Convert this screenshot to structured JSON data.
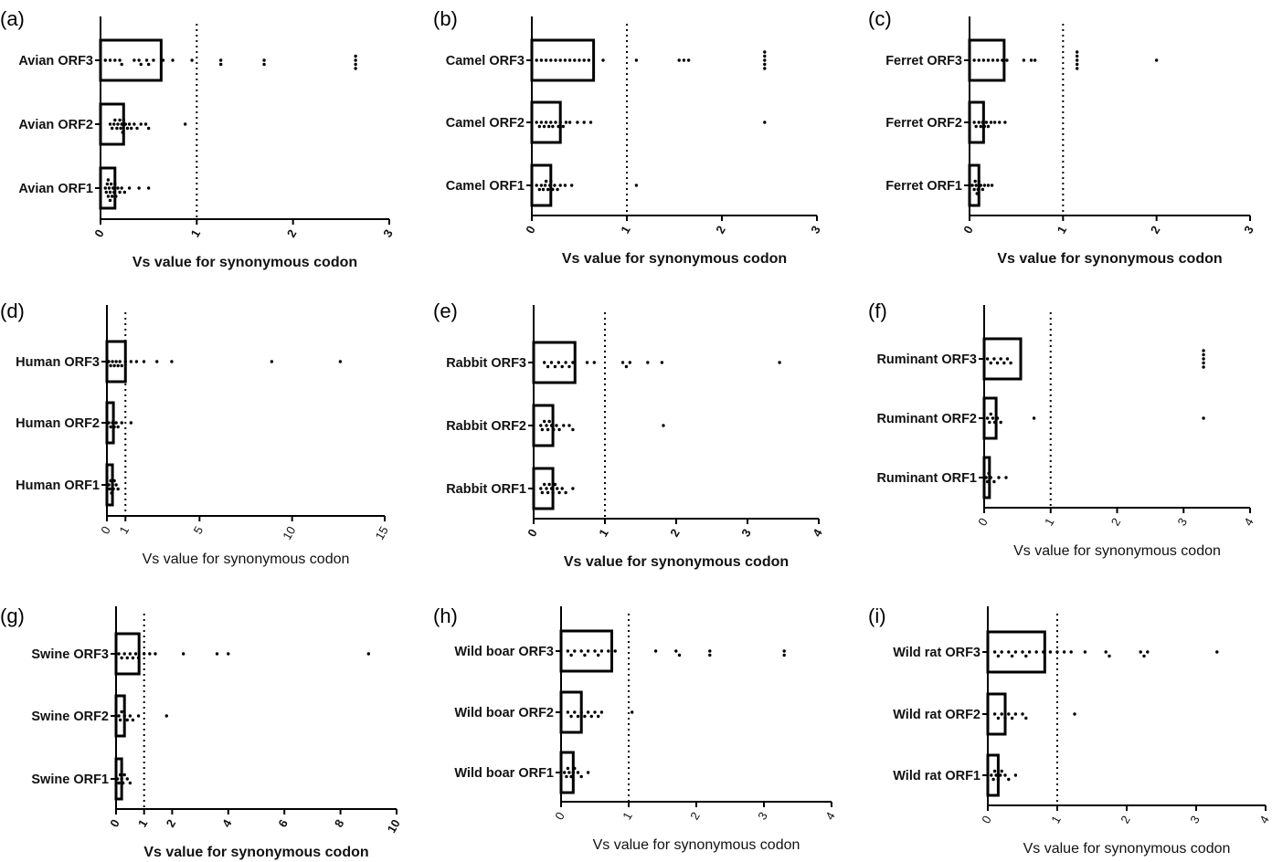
{
  "figure": {
    "colors": {
      "ink": "#000000",
      "background": "#ffffff"
    }
  },
  "chart_data": [
    {
      "panel": "(a)",
      "type": "scatter",
      "style": "dot-plot with bar at median",
      "xlabel": "Vs value for synonymous codon",
      "xlim": [
        0,
        3
      ],
      "xticks": [
        "0",
        "1",
        "2",
        "3"
      ],
      "tick_step": 1,
      "reference_line": 1,
      "categories": [
        "Avian ORF1",
        "Avian ORF2",
        "Avian ORF3"
      ],
      "bars": [
        0.15,
        0.24,
        0.63
      ],
      "series": [
        {
          "name": "Avian ORF1",
          "values": [
            0.05,
            0.06,
            0.07,
            0.08,
            0.08,
            0.09,
            0.1,
            0.1,
            0.11,
            0.12,
            0.13,
            0.14,
            0.15,
            0.16,
            0.18,
            0.2,
            0.22,
            0.25,
            0.3,
            0.4,
            0.5
          ]
        },
        {
          "name": "Avian ORF2",
          "values": [
            0.1,
            0.12,
            0.14,
            0.15,
            0.17,
            0.18,
            0.2,
            0.21,
            0.22,
            0.23,
            0.24,
            0.26,
            0.28,
            0.3,
            0.32,
            0.35,
            0.38,
            0.42,
            0.47,
            0.5,
            0.88
          ]
        },
        {
          "name": "Avian ORF3",
          "values": [
            0.05,
            0.1,
            0.15,
            0.2,
            0.22,
            0.35,
            0.4,
            0.42,
            0.48,
            0.5,
            0.55,
            0.65,
            0.75,
            0.95,
            1.25,
            1.25,
            1.7,
            1.7,
            2.65,
            2.65,
            2.65,
            2.65
          ]
        }
      ]
    },
    {
      "panel": "(b)",
      "type": "scatter",
      "style": "dot-plot with bar at median",
      "xlabel": "Vs value for synonymous codon",
      "xlim": [
        0,
        3
      ],
      "xticks": [
        "0",
        "1",
        "2",
        "3"
      ],
      "tick_step": 1,
      "reference_line": 1,
      "categories": [
        "Camel ORF1",
        "Camel ORF2",
        "Camel ORF3"
      ],
      "bars": [
        0.2,
        0.3,
        0.65
      ],
      "series": [
        {
          "name": "Camel ORF1",
          "values": [
            0.05,
            0.08,
            0.1,
            0.12,
            0.14,
            0.15,
            0.17,
            0.19,
            0.2,
            0.22,
            0.24,
            0.27,
            0.3,
            0.35,
            0.42,
            1.1
          ]
        },
        {
          "name": "Camel ORF2",
          "values": [
            0.05,
            0.08,
            0.1,
            0.13,
            0.15,
            0.18,
            0.2,
            0.22,
            0.25,
            0.28,
            0.3,
            0.33,
            0.36,
            0.4,
            0.48,
            0.55,
            0.62,
            2.45
          ]
        },
        {
          "name": "Camel ORF3",
          "values": [
            0.05,
            0.1,
            0.15,
            0.2,
            0.25,
            0.3,
            0.35,
            0.4,
            0.45,
            0.5,
            0.55,
            0.6,
            0.75,
            1.1,
            1.55,
            1.6,
            1.65,
            2.45,
            2.45,
            2.45,
            2.45,
            2.45
          ]
        }
      ]
    },
    {
      "panel": "(c)",
      "type": "scatter",
      "style": "dot-plot with bar at median",
      "xlabel": "Vs value for synonymous codon",
      "xlim": [
        0,
        3
      ],
      "xticks": [
        "0",
        "1",
        "2",
        "3"
      ],
      "tick_step": 1,
      "reference_line": 1,
      "categories": [
        "Ferret ORF1",
        "Ferret ORF2",
        "Ferret ORF3"
      ],
      "bars": [
        0.1,
        0.15,
        0.37
      ],
      "series": [
        {
          "name": "Ferret ORF1",
          "values": [
            0.03,
            0.05,
            0.06,
            0.07,
            0.08,
            0.09,
            0.1,
            0.12,
            0.14,
            0.16,
            0.2,
            0.24
          ]
        },
        {
          "name": "Ferret ORF2",
          "values": [
            0.05,
            0.07,
            0.1,
            0.12,
            0.14,
            0.16,
            0.18,
            0.2,
            0.23,
            0.27,
            0.32,
            0.38
          ]
        },
        {
          "name": "Ferret ORF3",
          "values": [
            0.05,
            0.1,
            0.15,
            0.2,
            0.25,
            0.3,
            0.35,
            0.4,
            0.58,
            0.66,
            0.7,
            1.15,
            1.15,
            1.15,
            1.15,
            1.15,
            2.0
          ]
        }
      ]
    },
    {
      "panel": "(d)",
      "type": "scatter",
      "style": "dot-plot with bar at median",
      "xlabel": "Vs value for synonymous codon",
      "xlabel_weight": "normal",
      "xlim": [
        0,
        15
      ],
      "xticks": [
        "0",
        "1",
        "5",
        "10",
        "15"
      ],
      "tick_values": [
        0,
        1,
        5,
        10,
        15
      ],
      "reference_line": 1,
      "categories": [
        "Human ORF1",
        "Human ORF2",
        "Human ORF3"
      ],
      "bars": [
        0.3,
        0.35,
        1.0
      ],
      "series": [
        {
          "name": "Human ORF1",
          "values": [
            0.1,
            0.15,
            0.2,
            0.25,
            0.3,
            0.35,
            0.4,
            0.5,
            0.6
          ]
        },
        {
          "name": "Human ORF2",
          "values": [
            0.1,
            0.2,
            0.3,
            0.4,
            0.5,
            0.6,
            0.8,
            1.3
          ]
        },
        {
          "name": "Human ORF3",
          "values": [
            0.1,
            0.2,
            0.3,
            0.4,
            0.5,
            0.6,
            0.7,
            0.8,
            1.0,
            1.3,
            1.6,
            2.0,
            2.7,
            3.5,
            8.9,
            12.6
          ]
        }
      ]
    },
    {
      "panel": "(e)",
      "type": "scatter",
      "style": "dot-plot with bar at median",
      "xlabel": "Vs value for synonymous codon",
      "xlim": [
        0,
        4
      ],
      "xticks": [
        "0",
        "1",
        "2",
        "3",
        "4"
      ],
      "tick_step": 1,
      "reference_line": 1,
      "categories": [
        "Rabbit ORF1",
        "Rabbit ORF2",
        "Rabbit ORF3"
      ],
      "bars": [
        0.27,
        0.27,
        0.58
      ],
      "series": [
        {
          "name": "Rabbit ORF1",
          "values": [
            0.1,
            0.12,
            0.15,
            0.18,
            0.2,
            0.22,
            0.25,
            0.27,
            0.3,
            0.33,
            0.36,
            0.4,
            0.45,
            0.55
          ]
        },
        {
          "name": "Rabbit ORF2",
          "values": [
            0.1,
            0.12,
            0.15,
            0.18,
            0.2,
            0.22,
            0.25,
            0.28,
            0.32,
            0.36,
            0.42,
            0.5,
            0.55,
            1.82
          ]
        },
        {
          "name": "Rabbit ORF3",
          "values": [
            0.15,
            0.2,
            0.25,
            0.3,
            0.35,
            0.4,
            0.45,
            0.5,
            0.55,
            0.75,
            0.85,
            1.25,
            1.3,
            1.35,
            1.6,
            1.8,
            3.45
          ]
        }
      ]
    },
    {
      "panel": "(f)",
      "type": "scatter",
      "style": "dot-plot with bar at median",
      "xlabel": "Vs value for synonymous codon",
      "xlabel_weight": "normal",
      "xlim": [
        0,
        4
      ],
      "xticks": [
        "0",
        "1",
        "2",
        "3",
        "4"
      ],
      "tick_step": 1,
      "reference_line": 1,
      "categories": [
        "Ruminant ORF1",
        "Ruminant ORF2",
        "Ruminant ORF3"
      ],
      "bars": [
        0.08,
        0.18,
        0.55
      ],
      "series": [
        {
          "name": "Ruminant ORF1",
          "values": [
            0.03,
            0.05,
            0.07,
            0.1,
            0.15,
            0.22,
            0.33
          ]
        },
        {
          "name": "Ruminant ORF2",
          "values": [
            0.05,
            0.08,
            0.1,
            0.13,
            0.16,
            0.2,
            0.25,
            0.75,
            3.3
          ]
        },
        {
          "name": "Ruminant ORF3",
          "values": [
            0.05,
            0.1,
            0.15,
            0.2,
            0.25,
            0.3,
            0.35,
            0.4,
            3.3,
            3.3,
            3.3,
            3.3,
            3.3
          ]
        }
      ]
    },
    {
      "panel": "(g)",
      "type": "scatter",
      "style": "dot-plot with bar at median",
      "xlabel": "Vs value for synonymous codon",
      "xlim": [
        0,
        10
      ],
      "xticks": [
        "0",
        "1",
        "2",
        "4",
        "6",
        "8",
        "10"
      ],
      "tick_values": [
        0,
        1,
        2,
        4,
        6,
        8,
        10
      ],
      "reference_line": 1,
      "categories": [
        "Swine ORF1",
        "Swine ORF2",
        "Swine ORF3"
      ],
      "bars": [
        0.2,
        0.3,
        0.82
      ],
      "series": [
        {
          "name": "Swine ORF1",
          "values": [
            0.05,
            0.1,
            0.15,
            0.2,
            0.25,
            0.3,
            0.4,
            0.5
          ]
        },
        {
          "name": "Swine ORF2",
          "values": [
            0.1,
            0.15,
            0.2,
            0.3,
            0.4,
            0.5,
            0.6,
            0.8,
            1.8
          ]
        },
        {
          "name": "Swine ORF3",
          "values": [
            0.1,
            0.2,
            0.3,
            0.4,
            0.5,
            0.6,
            0.7,
            0.8,
            1.0,
            1.2,
            1.4,
            2.4,
            3.6,
            4.0,
            9.0
          ]
        }
      ]
    },
    {
      "panel": "(h)",
      "type": "scatter",
      "style": "dot-plot with bar at median",
      "xlabel": "Vs value for synonymous codon",
      "xlabel_weight": "normal",
      "xlim": [
        0,
        4
      ],
      "xticks": [
        "0",
        "1",
        "2",
        "3",
        "4"
      ],
      "tick_step": 1,
      "reference_line": 1,
      "categories": [
        "Wild boar ORF1",
        "Wild boar ORF2",
        "Wild boar ORF3"
      ],
      "bars": [
        0.18,
        0.3,
        0.75
      ],
      "series": [
        {
          "name": "Wild boar ORF1",
          "values": [
            0.05,
            0.08,
            0.1,
            0.12,
            0.15,
            0.18,
            0.2,
            0.25,
            0.3,
            0.4
          ]
        },
        {
          "name": "Wild boar ORF2",
          "values": [
            0.1,
            0.15,
            0.2,
            0.25,
            0.3,
            0.35,
            0.4,
            0.45,
            0.5,
            0.55,
            0.6,
            1.05
          ]
        },
        {
          "name": "Wild boar ORF3",
          "values": [
            0.1,
            0.15,
            0.2,
            0.3,
            0.35,
            0.4,
            0.5,
            0.55,
            0.6,
            0.7,
            0.8,
            1.4,
            1.7,
            1.75,
            2.2,
            2.2,
            3.3,
            3.3
          ]
        }
      ]
    },
    {
      "panel": "(i)",
      "type": "scatter",
      "style": "dot-plot with bar at median",
      "xlabel": "Vs value for synonymous codon",
      "xlabel_weight": "normal",
      "xlim": [
        0,
        4
      ],
      "xticks": [
        "0",
        "1",
        "2",
        "3",
        "4"
      ],
      "tick_step": 1,
      "reference_line": 1,
      "categories": [
        "Wild rat ORF1",
        "Wild rat ORF2",
        "Wild rat ORF3"
      ],
      "bars": [
        0.15,
        0.25,
        0.82
      ],
      "series": [
        {
          "name": "Wild rat ORF1",
          "values": [
            0.05,
            0.08,
            0.1,
            0.12,
            0.15,
            0.18,
            0.2,
            0.25,
            0.3,
            0.4
          ]
        },
        {
          "name": "Wild rat ORF2",
          "values": [
            0.1,
            0.15,
            0.2,
            0.25,
            0.3,
            0.35,
            0.4,
            0.5,
            0.55,
            1.25
          ]
        },
        {
          "name": "Wild rat ORF3",
          "values": [
            0.1,
            0.15,
            0.2,
            0.3,
            0.35,
            0.4,
            0.5,
            0.55,
            0.6,
            0.7,
            0.8,
            0.9,
            1.0,
            1.1,
            1.2,
            1.4,
            1.7,
            1.75,
            2.2,
            2.25,
            2.3,
            3.3
          ]
        }
      ]
    }
  ]
}
